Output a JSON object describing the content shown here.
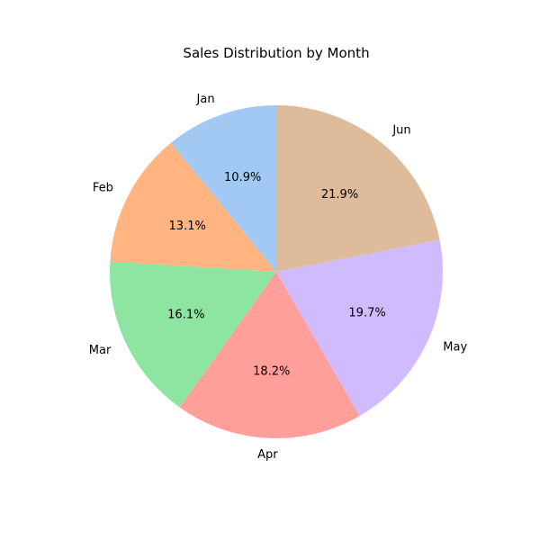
{
  "chart_data": {
    "type": "pie",
    "title": "Sales Distribution by Month",
    "categories": [
      "Jan",
      "Feb",
      "Mar",
      "Apr",
      "May",
      "Jun"
    ],
    "values": [
      10.9,
      13.1,
      16.1,
      18.2,
      19.7,
      21.9
    ],
    "value_labels": [
      "10.9%",
      "13.1%",
      "16.1%",
      "18.2%",
      "19.7%",
      "21.9%"
    ],
    "colors": [
      "#a1c9f4",
      "#ffb482",
      "#8de5a1",
      "#ff9f9b",
      "#d0bbff",
      "#debb9b"
    ],
    "start_angle_deg": 90,
    "direction": "counterclockwise",
    "legend": "none"
  }
}
